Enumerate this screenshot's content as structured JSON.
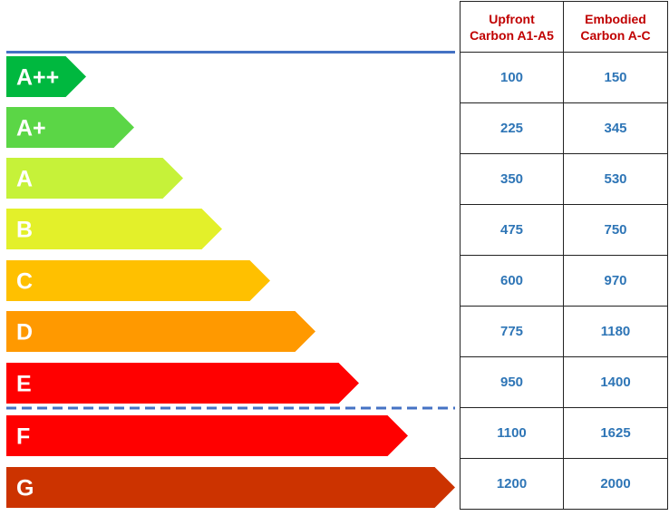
{
  "chart_data": {
    "type": "table",
    "columns": [
      "Upfront Carbon A1-A5",
      "Embodied Carbon A-C"
    ],
    "ratings": [
      {
        "label": "A++",
        "upfront": "100",
        "embodied": "150",
        "color": "#00b83f"
      },
      {
        "label": "A+",
        "upfront": "225",
        "embodied": "345",
        "color": "#5bd646"
      },
      {
        "label": "A",
        "upfront": "350",
        "embodied": "530",
        "color": "#c6f239"
      },
      {
        "label": "B",
        "upfront": "475",
        "embodied": "750",
        "color": "#e3f02a"
      },
      {
        "label": "C",
        "upfront": "600",
        "embodied": "970",
        "color": "#ffc000"
      },
      {
        "label": "D",
        "upfront": "775",
        "embodied": "1180",
        "color": "#ff9900"
      },
      {
        "label": "E",
        "upfront": "950",
        "embodied": "1400",
        "color": "#ff0000"
      },
      {
        "label": "F",
        "upfront": "1100",
        "embodied": "1625",
        "color": "#ff0000"
      },
      {
        "label": "G",
        "upfront": "1200",
        "embodied": "2000",
        "color": "#cc3300"
      }
    ],
    "header_text_color": "#c00000",
    "value_text_color": "#2e75b6",
    "divider_color": "#4472c4"
  }
}
